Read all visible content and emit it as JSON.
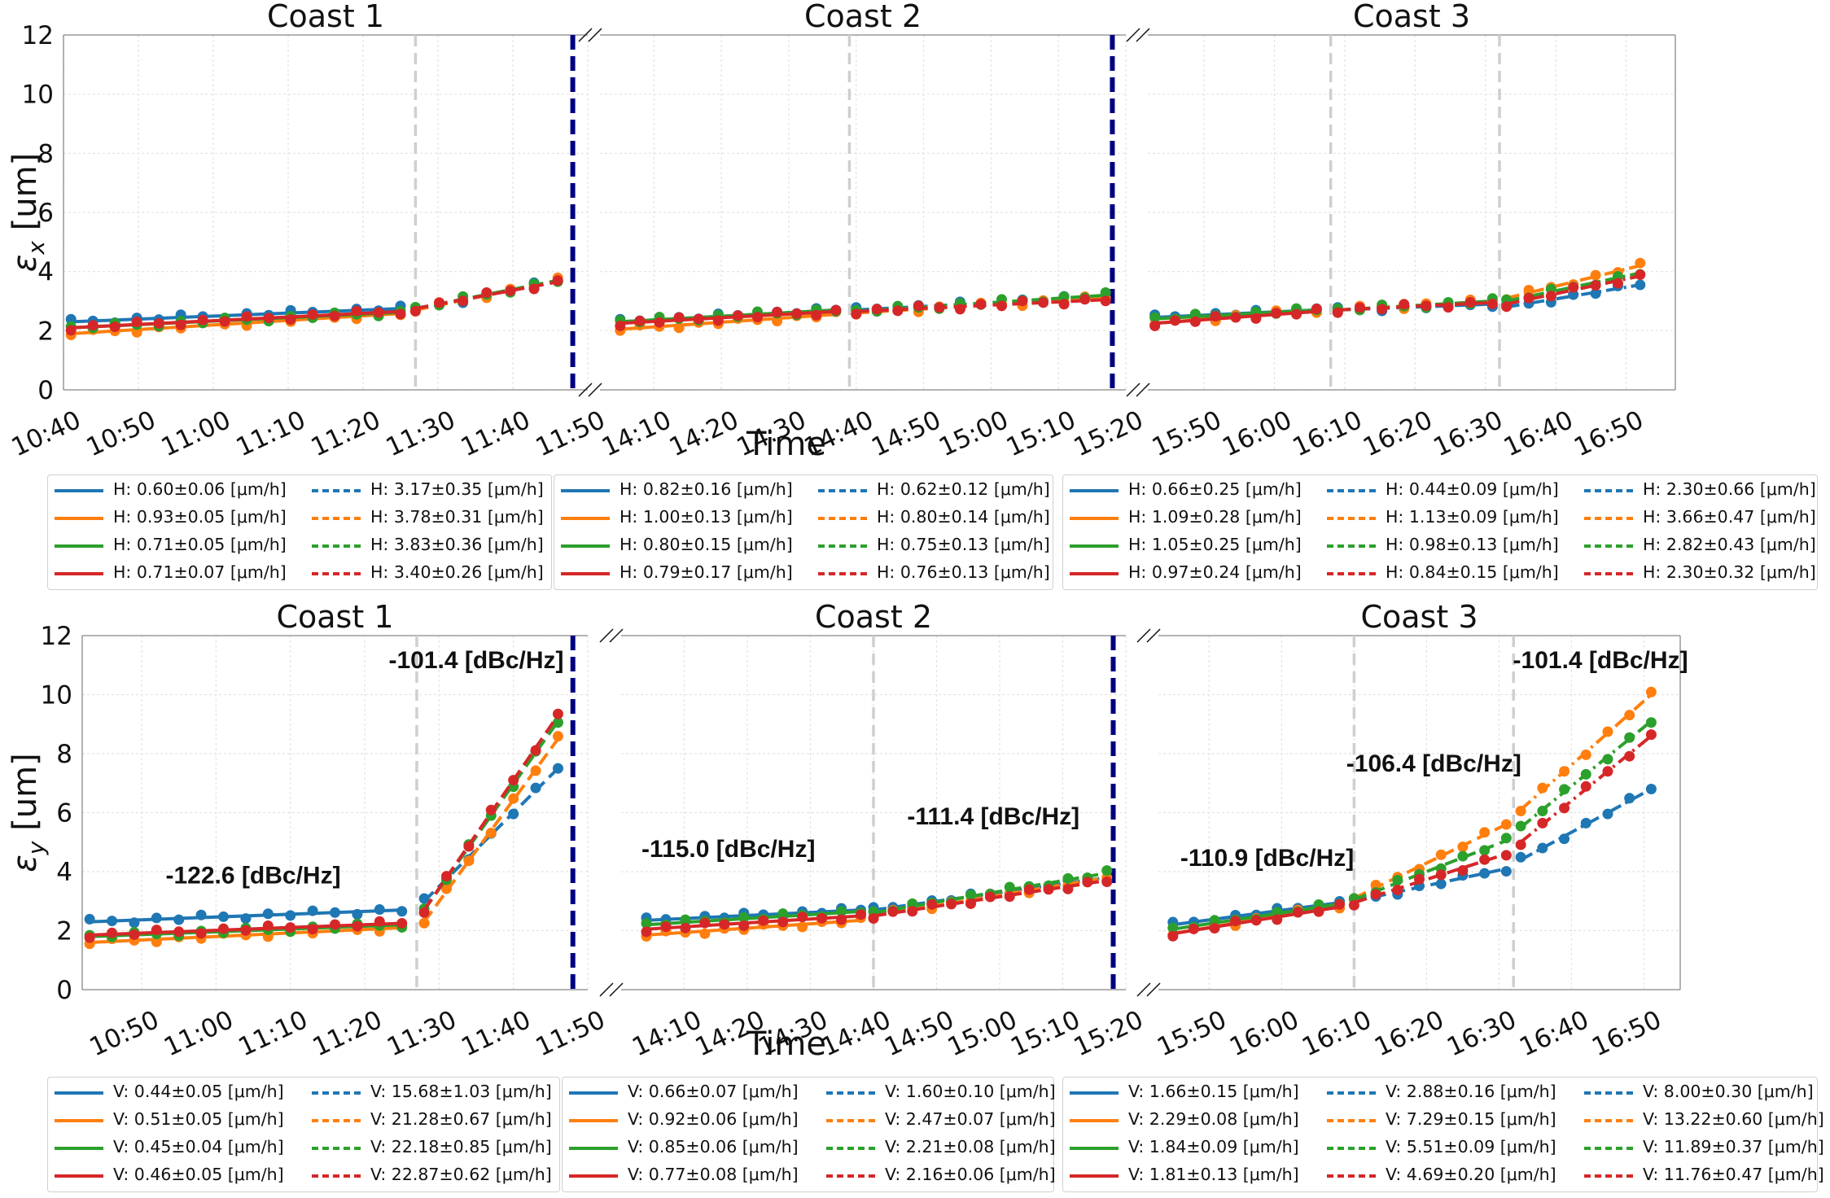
{
  "colors": {
    "blue": "#1f77b4",
    "orange": "#ff7f0e",
    "green": "#2ca02c",
    "red": "#d62728",
    "separator": "#00007f",
    "segment_line": "#cfcfcf"
  },
  "chart_data": [
    {
      "type": "line",
      "ylabel": "εx [um]",
      "ylabel_main": "ε",
      "ylabel_sub": "x",
      "ylabel_unit": " [um]",
      "xlabel": "Time",
      "ylim": [
        0,
        12
      ],
      "yticks": [
        "0",
        "2",
        "4",
        "6",
        "8",
        "10",
        "12"
      ],
      "grid": true,
      "coasts": [
        {
          "title": "Coast 1",
          "xlim": [
            "10:40",
            "11:50"
          ],
          "xticks": [
            "10:40",
            "10:50",
            "11:00",
            "11:10",
            "11:20",
            "11:30",
            "11:40",
            "11:50"
          ],
          "boundaries": [
            "11:27"
          ],
          "end_marker": "11:48",
          "segments": [
            {
              "t0": "10:41",
              "t1": "11:25",
              "style": "solid",
              "starts": [
                2.3,
                1.9,
                2.1,
                2.1
              ],
              "ends": [
                2.75,
                2.58,
                2.62,
                2.65
              ]
            },
            {
              "t0": "11:27",
              "t1": "11:46",
              "style": "dashed",
              "starts": [
                2.7,
                2.7,
                2.75,
                2.75
              ],
              "ends": [
                3.7,
                3.7,
                3.7,
                3.65
              ]
            }
          ]
        },
        {
          "title": "Coast 2",
          "xlim": [
            "14:02",
            "15:20"
          ],
          "xticks": [
            "14:10",
            "14:20",
            "14:30",
            "14:40",
            "14:50",
            "15:00",
            "15:10",
            "15:20"
          ],
          "boundaries": [
            "14:39"
          ],
          "end_marker": "15:18",
          "segments": [
            {
              "t0": "14:05",
              "t1": "14:37",
              "style": "solid",
              "starts": [
                2.3,
                2.05,
                2.3,
                2.25
              ],
              "ends": [
                2.7,
                2.55,
                2.7,
                2.65
              ]
            },
            {
              "t0": "14:40",
              "t1": "15:17",
              "style": "dashed",
              "starts": [
                2.7,
                2.6,
                2.65,
                2.65
              ],
              "ends": [
                3.15,
                3.1,
                3.2,
                3.05
              ]
            }
          ]
        },
        {
          "title": "Coast 3",
          "xlim": [
            "15:42",
            "16:57"
          ],
          "xticks": [
            "15:50",
            "16:00",
            "16:10",
            "16:20",
            "16:30",
            "16:40",
            "16:50"
          ],
          "boundaries": [
            "16:08",
            "16:32"
          ],
          "segments": [
            {
              "t0": "15:43",
              "t1": "16:06",
              "style": "solid",
              "starts": [
                2.45,
                2.25,
                2.4,
                2.25
              ],
              "ends": [
                2.7,
                2.7,
                2.7,
                2.65
              ]
            },
            {
              "t0": "16:09",
              "t1": "16:31",
              "style": "dashed",
              "starts": [
                2.7,
                2.7,
                2.7,
                2.7
              ],
              "ends": [
                2.9,
                3.0,
                3.0,
                2.95
              ]
            },
            {
              "t0": "16:33",
              "t1": "16:52",
              "style": "dashdot",
              "starts": [
                2.8,
                3.1,
                3.0,
                2.9
              ],
              "ends": [
                3.55,
                4.2,
                3.95,
                3.85
              ]
            }
          ]
        }
      ],
      "legends": [
        [
          [
            "H: 0.60±0.06 [μm/h]",
            "H: 0.93±0.05 [μm/h]",
            "H: 0.71±0.05 [μm/h]",
            "H: 0.71±0.07 [μm/h]"
          ],
          [
            "H: 3.17±0.35 [μm/h]",
            "H: 3.78±0.31 [μm/h]",
            "H: 3.83±0.36 [μm/h]",
            "H: 3.40±0.26 [μm/h]"
          ]
        ],
        [
          [
            "H: 0.82±0.16 [μm/h]",
            "H: 1.00±0.13 [μm/h]",
            "H: 0.80±0.15 [μm/h]",
            "H: 0.79±0.17 [μm/h]"
          ],
          [
            "H: 0.62±0.12 [μm/h]",
            "H: 0.80±0.14 [μm/h]",
            "H: 0.75±0.13 [μm/h]",
            "H: 0.76±0.13 [μm/h]"
          ]
        ],
        [
          [
            "H: 0.66±0.25 [μm/h]",
            "H: 1.09±0.28 [μm/h]",
            "H: 1.05±0.25 [μm/h]",
            "H: 0.97±0.24 [μm/h]"
          ],
          [
            "H: 0.44±0.09 [μm/h]",
            "H: 1.13±0.09 [μm/h]",
            "H: 0.98±0.13 [μm/h]",
            "H: 0.84±0.15 [μm/h]"
          ],
          [
            "H: 2.30±0.66 [μm/h]",
            "H: 3.66±0.47 [μm/h]",
            "H: 2.82±0.43 [μm/h]",
            "H: 2.30±0.32 [μm/h]"
          ]
        ]
      ]
    },
    {
      "type": "line",
      "ylabel": "εy [um]",
      "ylabel_main": "ε",
      "ylabel_sub": "y",
      "ylabel_unit": " [um]",
      "xlabel": "Time",
      "ylim": [
        0,
        12
      ],
      "yticks": [
        "0",
        "2",
        "4",
        "6",
        "8",
        "10",
        "12"
      ],
      "grid": true,
      "coasts": [
        {
          "title": "Coast 1",
          "xlim": [
            "10:42",
            "11:50"
          ],
          "xticks": [
            "10:50",
            "11:00",
            "11:10",
            "11:20",
            "11:30",
            "11:40",
            "11:50"
          ],
          "boundaries": [
            "11:27"
          ],
          "end_marker": "11:48",
          "segments": [
            {
              "t0": "10:43",
              "t1": "11:25",
              "style": "solid",
              "starts": [
                2.3,
                1.6,
                1.8,
                1.85
              ],
              "ends": [
                2.7,
                2.1,
                2.2,
                2.25
              ]
            },
            {
              "t0": "11:28",
              "t1": "11:46",
              "style": "dashed",
              "starts": [
                3.0,
                2.3,
                2.7,
                2.7
              ],
              "ends": [
                7.5,
                8.5,
                9.1,
                9.3
              ]
            }
          ]
        },
        {
          "title": "Coast 2",
          "xlim": [
            "14:00",
            "15:20"
          ],
          "xticks": [
            "14:10",
            "14:20",
            "14:30",
            "14:40",
            "14:50",
            "15:00",
            "15:10",
            "15:20"
          ],
          "boundaries": [
            "14:40"
          ],
          "end_marker": "15:18",
          "segments": [
            {
              "t0": "14:04",
              "t1": "14:38",
              "style": "solid",
              "starts": [
                2.35,
                1.85,
                2.2,
                2.05
              ],
              "ends": [
                2.7,
                2.35,
                2.65,
                2.5
              ]
            },
            {
              "t0": "14:40",
              "t1": "15:17",
              "style": "dashed",
              "starts": [
                2.7,
                2.5,
                2.6,
                2.5
              ],
              "ends": [
                3.8,
                3.8,
                3.95,
                3.7
              ]
            }
          ]
        },
        {
          "title": "Coast 3",
          "xlim": [
            "15:43",
            "16:55"
          ],
          "xticks": [
            "15:50",
            "16:00",
            "16:10",
            "16:20",
            "16:30",
            "16:40",
            "16:50"
          ],
          "boundaries": [
            "16:10",
            "16:32"
          ],
          "segments": [
            {
              "t0": "15:45",
              "t1": "16:08",
              "style": "solid",
              "starts": [
                2.2,
                1.9,
                2.05,
                1.9
              ],
              "ends": [
                2.95,
                2.85,
                2.9,
                2.8
              ]
            },
            {
              "t0": "16:10",
              "t1": "16:31",
              "style": "dashed",
              "starts": [
                3.0,
                3.1,
                3.05,
                2.95
              ],
              "ends": [
                4.1,
                5.6,
                5.05,
                4.6
              ]
            },
            {
              "t0": "16:33",
              "t1": "16:51",
              "style": "dashdot",
              "starts": [
                4.4,
                6.1,
                5.5,
                5.0
              ],
              "ends": [
                6.8,
                10.0,
                9.1,
                8.6
              ]
            }
          ]
        }
      ],
      "annotations": [
        {
          "coast": 0,
          "text": "-122.6 [dBc/Hz]",
          "x": "11:05",
          "y": 3.6
        },
        {
          "coast": 0,
          "text": "-101.4 [dBc/Hz]",
          "x": "11:35",
          "y": 10.9
        },
        {
          "coast": 1,
          "text": "-115.0 [dBc/Hz]",
          "x": "14:17",
          "y": 4.5
        },
        {
          "coast": 1,
          "text": "-111.4 [dBc/Hz]",
          "x": "14:59",
          "y": 5.6
        },
        {
          "coast": 2,
          "text": "-110.9 [dBc/Hz]",
          "x": "15:58",
          "y": 4.2
        },
        {
          "coast": 2,
          "text": "-106.4 [dBc/Hz]",
          "x": "16:21",
          "y": 7.4
        },
        {
          "coast": 2,
          "text": "-101.4 [dBc/Hz]",
          "x": "16:44",
          "y": 10.9
        }
      ],
      "legends": [
        [
          [
            "V: 0.44±0.05 [μm/h]",
            "V: 0.51±0.05 [μm/h]",
            "V: 0.45±0.04 [μm/h]",
            "V: 0.46±0.05 [μm/h]"
          ],
          [
            "V: 15.68±1.03 [μm/h]",
            "V: 21.28±0.67 [μm/h]",
            "V: 22.18±0.85 [μm/h]",
            "V: 22.87±0.62 [μm/h]"
          ]
        ],
        [
          [
            "V: 0.66±0.07 [μm/h]",
            "V: 0.92±0.06 [μm/h]",
            "V: 0.85±0.06 [μm/h]",
            "V: 0.77±0.08 [μm/h]"
          ],
          [
            "V: 1.60±0.10 [μm/h]",
            "V: 2.47±0.07 [μm/h]",
            "V: 2.21±0.08 [μm/h]",
            "V: 2.16±0.06 [μm/h]"
          ]
        ],
        [
          [
            "V: 1.66±0.15 [μm/h]",
            "V: 2.29±0.08 [μm/h]",
            "V: 1.84±0.09 [μm/h]",
            "V: 1.81±0.13 [μm/h]"
          ],
          [
            "V: 2.88±0.16 [μm/h]",
            "V: 7.29±0.15 [μm/h]",
            "V: 5.51±0.09 [μm/h]",
            "V: 4.69±0.20 [μm/h]"
          ],
          [
            "V: 8.00±0.30 [μm/h]",
            "V: 13.22±0.60 [μm/h]",
            "V: 11.89±0.37 [μm/h]",
            "V: 11.76±0.47 [μm/h]"
          ]
        ]
      ]
    }
  ]
}
